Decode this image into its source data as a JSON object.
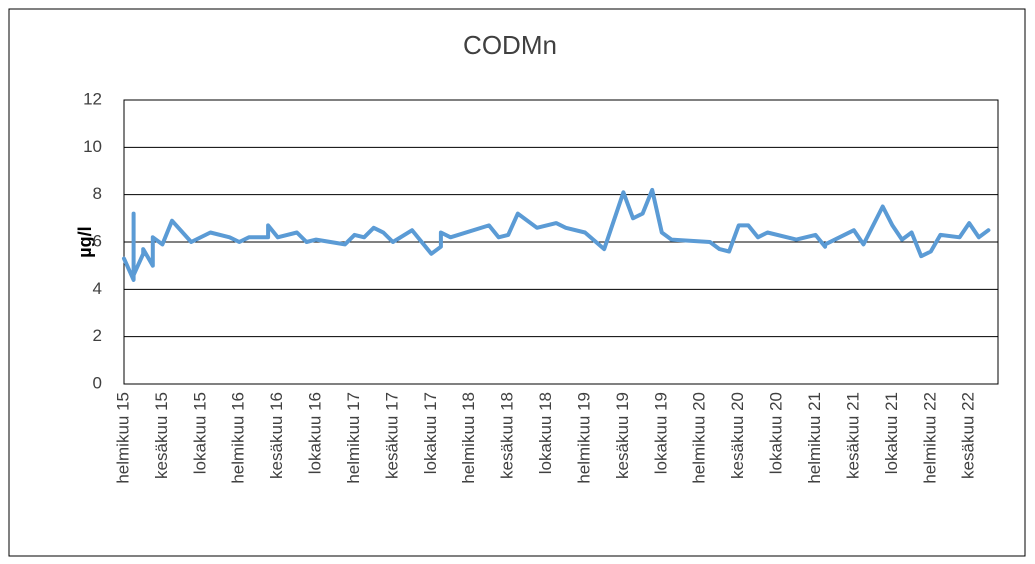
{
  "chart_data": {
    "type": "line",
    "title": "CODMn",
    "y_label": "µg/l",
    "x": [
      "2015-02",
      "2015-03",
      "2015-03",
      "2015-03",
      "2015-04",
      "2015-04",
      "2015-05",
      "2015-05",
      "2015-06",
      "2015-07",
      "2015-09",
      "2015-11",
      "2016-01",
      "2016-02",
      "2016-03",
      "2016-05",
      "2016-05",
      "2016-06",
      "2016-08",
      "2016-09",
      "2016-10",
      "2017-01",
      "2017-02",
      "2017-03",
      "2017-04",
      "2017-05",
      "2017-06",
      "2017-08",
      "2017-10",
      "2017-11",
      "2017-11",
      "2017-12",
      "2018-04",
      "2018-05",
      "2018-06",
      "2018-07",
      "2018-09",
      "2018-11",
      "2018-12",
      "2019-02",
      "2019-04",
      "2019-06",
      "2019-07",
      "2019-08",
      "2019-09",
      "2019-10",
      "2019-11",
      "2020-03",
      "2020-04",
      "2020-05",
      "2020-06",
      "2020-07",
      "2020-08",
      "2020-09",
      "2020-12",
      "2021-02",
      "2021-03",
      "2021-03",
      "2021-06",
      "2021-07",
      "2021-09",
      "2021-10",
      "2021-11",
      "2021-12",
      "2022-01",
      "2022-02",
      "2022-03",
      "2022-05",
      "2022-06",
      "2022-07",
      "2022-08"
    ],
    "series": [
      {
        "name": "CODMn",
        "color": "#5b9bd5",
        "values": [
          5.3,
          4.4,
          7.2,
          4.6,
          5.5,
          5.7,
          5.0,
          6.2,
          5.9,
          6.9,
          6.0,
          6.4,
          6.2,
          6.0,
          6.2,
          6.2,
          6.7,
          6.2,
          6.4,
          6.0,
          6.1,
          5.9,
          6.3,
          6.2,
          6.6,
          6.4,
          6.0,
          6.5,
          5.5,
          5.8,
          6.4,
          6.2,
          6.7,
          6.2,
          6.3,
          7.2,
          6.6,
          6.8,
          6.6,
          6.4,
          5.7,
          8.1,
          7.0,
          7.2,
          8.2,
          6.4,
          6.1,
          6.0,
          5.7,
          5.6,
          6.7,
          6.7,
          6.2,
          6.4,
          6.1,
          6.3,
          5.8,
          5.9,
          6.5,
          5.9,
          7.5,
          6.7,
          6.1,
          6.4,
          5.4,
          5.6,
          6.3,
          6.2,
          6.8,
          6.2,
          6.5
        ]
      }
    ],
    "xlim": [
      "2015-02",
      "2022-09"
    ],
    "xticks": [
      {
        "value": "2015-02",
        "label": "helmikuu 15"
      },
      {
        "value": "2015-06",
        "label": "kesäkuu 15"
      },
      {
        "value": "2015-10",
        "label": "lokakuu 15"
      },
      {
        "value": "2016-02",
        "label": "helmikuu 16"
      },
      {
        "value": "2016-06",
        "label": "kesäkuu 16"
      },
      {
        "value": "2016-10",
        "label": "lokakuu 16"
      },
      {
        "value": "2017-02",
        "label": "helmikuu 17"
      },
      {
        "value": "2017-06",
        "label": "kesäkuu 17"
      },
      {
        "value": "2017-10",
        "label": "lokakuu 17"
      },
      {
        "value": "2018-02",
        "label": "helmikuu 18"
      },
      {
        "value": "2018-06",
        "label": "kesäkuu 18"
      },
      {
        "value": "2018-10",
        "label": "lokakuu 18"
      },
      {
        "value": "2019-02",
        "label": "helmikuu 19"
      },
      {
        "value": "2019-06",
        "label": "kesäkuu 19"
      },
      {
        "value": "2019-10",
        "label": "lokakuu 19"
      },
      {
        "value": "2020-02",
        "label": "helmikuu 20"
      },
      {
        "value": "2020-06",
        "label": "kesäkuu 20"
      },
      {
        "value": "2020-10",
        "label": "lokakuu 20"
      },
      {
        "value": "2021-02",
        "label": "helmikuu 21"
      },
      {
        "value": "2021-06",
        "label": "kesäkuu 21"
      },
      {
        "value": "2021-10",
        "label": "lokakuu 21"
      },
      {
        "value": "2022-02",
        "label": "helmikuu 22"
      },
      {
        "value": "2022-06",
        "label": "kesäkuu 22"
      }
    ],
    "ylim": [
      0,
      12
    ],
    "yticks": [
      0,
      2,
      4,
      6,
      8,
      10,
      12
    ],
    "grid": true
  }
}
